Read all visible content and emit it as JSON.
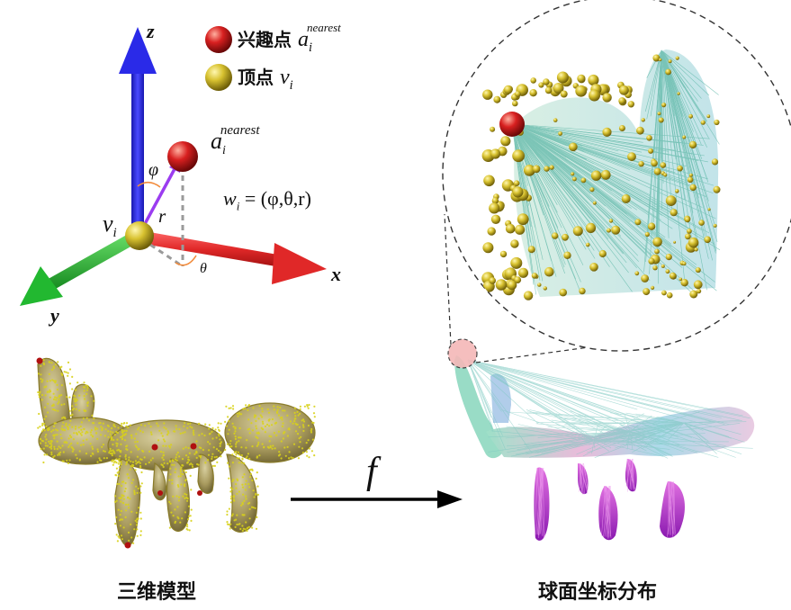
{
  "axes": {
    "z": "z",
    "x": "x",
    "y": "y"
  },
  "legend": {
    "interest_point_text": "兴趣点",
    "interest_point_symbol": "a",
    "interest_point_sub": "i",
    "interest_point_sup": "nearest",
    "vertex_text": "顶点",
    "vertex_symbol": "v",
    "vertex_sub": "i"
  },
  "diagram": {
    "vertex_symbol": "v",
    "vertex_sub": "i",
    "nearest_symbol": "a",
    "nearest_sub": "i",
    "nearest_sup": "nearest",
    "phi": "φ",
    "theta": "θ",
    "r": "r",
    "formula_lhs": "w",
    "formula_sub": "i",
    "formula_rhs": " = (φ,θ,r)"
  },
  "mapping_label": "f",
  "captions": {
    "left": "三维模型",
    "right": "球面坐标分布"
  },
  "colors": {
    "axis_z": "#2a2ae0",
    "axis_x": "#e02828",
    "axis_y": "#22b830",
    "vector": "#9b3cf0",
    "vertex_ball": "#c9b21e",
    "interest_ball": "#c81e1e",
    "model_body": "#b8a96a",
    "arrow": "#000000"
  }
}
